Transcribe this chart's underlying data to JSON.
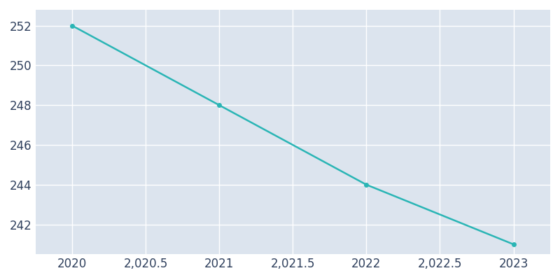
{
  "x": [
    2020,
    2021,
    2022,
    2023
  ],
  "y": [
    252,
    248,
    244,
    241
  ],
  "line_color": "#2ab5b5",
  "marker": "o",
  "marker_size": 4,
  "axes_background_color": "#dce4ee",
  "figure_background_color": "#ffffff",
  "grid_color": "#ffffff",
  "tick_color": "#2e3f5c",
  "xlim": [
    2019.75,
    2023.25
  ],
  "ylim": [
    240.5,
    252.8
  ],
  "xticks": [
    2020,
    2020.5,
    2021,
    2021.5,
    2022,
    2022.5,
    2023
  ],
  "yticks": [
    242,
    244,
    246,
    248,
    250,
    252
  ],
  "linewidth": 1.8,
  "tick_fontsize": 12
}
